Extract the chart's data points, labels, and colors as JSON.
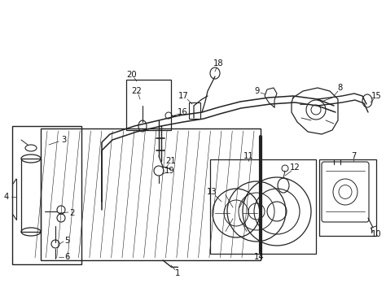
{
  "bg_color": "#ffffff",
  "line_color": "#222222",
  "figsize": [
    4.74,
    3.48
  ],
  "dpi": 100
}
